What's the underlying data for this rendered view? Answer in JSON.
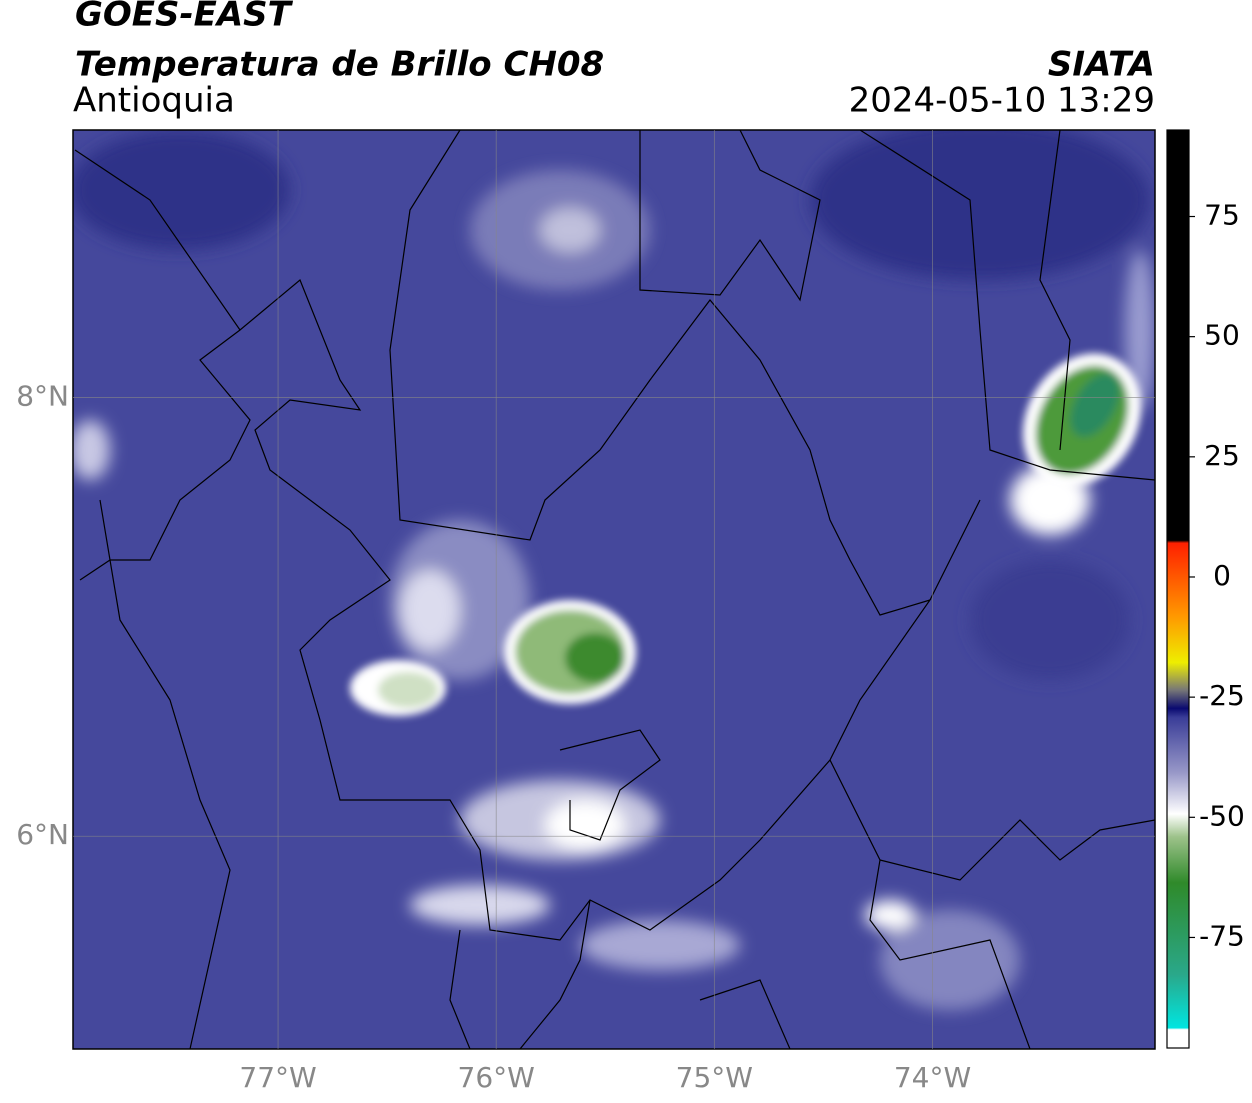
{
  "header": {
    "title": "GOES-EAST",
    "subtitle": "Temperatura de Brillo CH08",
    "region": "Antioquia",
    "source": "SIATA",
    "timestamp": "2024-05-10 13:29"
  },
  "map": {
    "xlim": [
      -77.94,
      -72.98
    ],
    "ylim": [
      5.03,
      9.22
    ],
    "xticks": [
      {
        "value": -77,
        "label": "77°W"
      },
      {
        "value": -76,
        "label": "76°W"
      },
      {
        "value": -75,
        "label": "75°W"
      },
      {
        "value": -74,
        "label": "74°W"
      }
    ],
    "yticks": [
      {
        "value": 6,
        "label": "6°N"
      },
      {
        "value": 8,
        "label": "8°N"
      }
    ]
  },
  "colorbar": {
    "range": [
      -98,
      93
    ],
    "ticks": [
      75,
      50,
      25,
      0,
      -25,
      -50,
      -75
    ]
  }
}
